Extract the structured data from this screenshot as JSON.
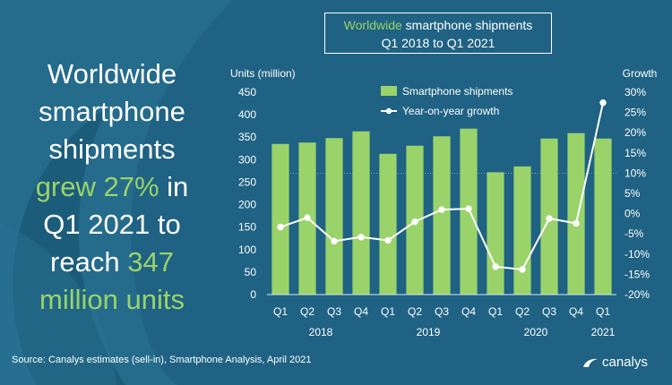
{
  "headline": {
    "line1": "Worldwide",
    "line2": "smartphone",
    "line3": "shipments",
    "line4_highlight": "grew 27%",
    "line4_rest": " in",
    "line5": "Q1 2021 to",
    "line6_text": "reach ",
    "line6_highlight": "347",
    "line7_highlight": "million units"
  },
  "source": "Source: Canalys estimates (sell-in), Smartphone Analysis, April 2021",
  "brand": "canalys",
  "colors": {
    "background": "#1f6283",
    "bar": "#9ad36a",
    "accent": "#9ad36a",
    "line": "#ffffff"
  },
  "chart_data": {
    "type": "bar",
    "title_accent": "Worldwide",
    "title_rest": " smartphone shipments",
    "subtitle": "Q1 2018 to Q1 2021",
    "ylabel_left": "Units (million)",
    "ylabel_right": "Growth",
    "ylim_left": [
      0,
      450
    ],
    "yticks_left": [
      "0",
      "50",
      "100",
      "150",
      "200",
      "250",
      "300",
      "350",
      "400",
      "450"
    ],
    "ylim_right": [
      -20,
      30
    ],
    "yticks_right": [
      "-20%",
      "-15%",
      "-10%",
      "-5%",
      "0%",
      "5%",
      "10%",
      "15%",
      "20%",
      "25%",
      "30%"
    ],
    "categories": [
      "Q1",
      "Q2",
      "Q3",
      "Q4",
      "Q1",
      "Q2",
      "Q3",
      "Q4",
      "Q1",
      "Q2",
      "Q3",
      "Q4",
      "Q1"
    ],
    "years": [
      {
        "label": "2018",
        "start": 0,
        "end": 3
      },
      {
        "label": "2019",
        "start": 4,
        "end": 7
      },
      {
        "label": "2020",
        "start": 8,
        "end": 11
      },
      {
        "label": "2021",
        "start": 12,
        "end": 12
      }
    ],
    "series": [
      {
        "name": "Smartphone shipments",
        "axis": "left",
        "type": "bar",
        "values": [
          335,
          338,
          348,
          363,
          313,
          331,
          352,
          369,
          272,
          285,
          347,
          359,
          347
        ]
      },
      {
        "name": "Year-on-year growth",
        "axis": "right",
        "type": "line",
        "values": [
          -3.3,
          -1.0,
          -6.8,
          -5.8,
          -6.6,
          -2.0,
          1.0,
          1.2,
          -13.1,
          -13.8,
          -1.2,
          -2.4,
          27.4
        ]
      }
    ],
    "legend_position": "top"
  }
}
